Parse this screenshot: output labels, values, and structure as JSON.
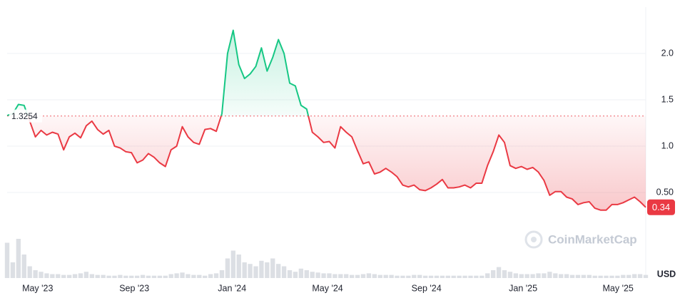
{
  "chart_data": {
    "type": "line",
    "baseline": 1.3254,
    "watermark": "CoinMarketCap",
    "currency": "USD",
    "xlim": [
      0,
      113
    ],
    "xticks": [
      {
        "value": 5.4,
        "label": "May '23"
      },
      {
        "value": 22.5,
        "label": "Sep '23"
      },
      {
        "value": 39.8,
        "label": "Jan '24"
      },
      {
        "value": 56.7,
        "label": "May '24"
      },
      {
        "value": 74.2,
        "label": "Sep '24"
      },
      {
        "value": 91.3,
        "label": "Jan '25"
      },
      {
        "value": 108.1,
        "label": "May '25"
      }
    ],
    "ylim": [
      0,
      2.5
    ],
    "yticks": [
      {
        "value": 0.5,
        "label": "0.50"
      },
      {
        "value": 1,
        "label": "1.0"
      },
      1.5,
      {
        "value": 2,
        "label": "2.0"
      }
    ],
    "grid": true,
    "up_color": "#16c784",
    "down_color": "#ea3943",
    "volume_color": "#dcdfe4",
    "series": [
      {
        "name": "Price",
        "values": [
          1.33,
          1.35,
          1.45,
          1.44,
          1.27,
          1.1,
          1.17,
          1.12,
          1.15,
          1.13,
          0.96,
          1.1,
          1.14,
          1.09,
          1.22,
          1.27,
          1.18,
          1.13,
          1.17,
          1.0,
          0.98,
          0.94,
          0.93,
          0.82,
          0.85,
          0.92,
          0.88,
          0.82,
          0.78,
          0.96,
          1.0,
          1.21,
          1.1,
          1.04,
          1.02,
          1.18,
          1.19,
          1.16,
          1.35,
          2.0,
          2.25,
          1.88,
          1.73,
          1.78,
          1.86,
          2.06,
          1.81,
          1.96,
          2.15,
          2.0,
          1.68,
          1.65,
          1.44,
          1.4,
          1.15,
          1.1,
          1.04,
          1.05,
          0.98,
          1.21,
          1.15,
          1.1,
          0.95,
          0.81,
          0.83,
          0.7,
          0.72,
          0.76,
          0.72,
          0.67,
          0.58,
          0.56,
          0.58,
          0.53,
          0.52,
          0.55,
          0.59,
          0.64,
          0.55,
          0.55,
          0.56,
          0.58,
          0.55,
          0.6,
          0.6,
          0.79,
          0.94,
          1.12,
          1.04,
          0.79,
          0.76,
          0.78,
          0.75,
          0.77,
          0.72,
          0.63,
          0.47,
          0.51,
          0.51,
          0.45,
          0.43,
          0.37,
          0.39,
          0.4,
          0.33,
          0.31,
          0.31,
          0.37,
          0.37,
          0.39,
          0.42,
          0.45,
          0.4,
          0.34
        ]
      },
      {
        "name": "Volume",
        "values": [
          45,
          20,
          50,
          30,
          15,
          10,
          8,
          6,
          5,
          5,
          4,
          4,
          5,
          6,
          8,
          5,
          4,
          4,
          3,
          3,
          4,
          3,
          3,
          3,
          4,
          3,
          3,
          3,
          3,
          5,
          6,
          7,
          5,
          4,
          4,
          3,
          5,
          6,
          10,
          25,
          35,
          30,
          20,
          18,
          15,
          22,
          20,
          25,
          18,
          15,
          10,
          8,
          12,
          10,
          8,
          7,
          6,
          6,
          5,
          5,
          5,
          4,
          4,
          5,
          6,
          5,
          4,
          4,
          4,
          3,
          3,
          3,
          4,
          4,
          3,
          3,
          3,
          3,
          3,
          3,
          3,
          3,
          3,
          3,
          3,
          6,
          10,
          14,
          10,
          8,
          6,
          5,
          5,
          5,
          6,
          6,
          8,
          6,
          5,
          5,
          4,
          4,
          4,
          4,
          3,
          3,
          3,
          3,
          3,
          4,
          4,
          5,
          5,
          4
        ]
      }
    ]
  }
}
